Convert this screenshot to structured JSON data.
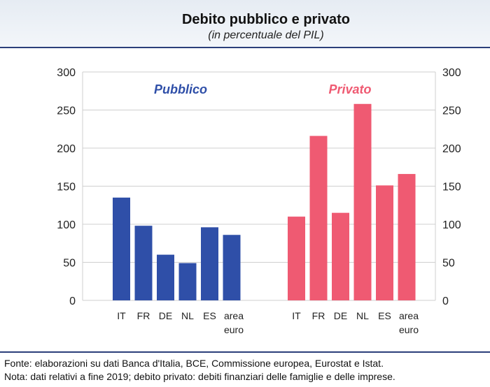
{
  "chart_data": {
    "type": "bar",
    "title": "Debito pubblico e privato",
    "subtitle": "(in percentuale del PIL)",
    "categories": [
      "IT",
      "FR",
      "DE",
      "NL",
      "ES",
      "area euro"
    ],
    "category_lines": [
      [
        "IT"
      ],
      [
        "FR"
      ],
      [
        "DE"
      ],
      [
        "NL"
      ],
      [
        "ES"
      ],
      [
        "area",
        "euro"
      ]
    ],
    "series": [
      {
        "name": "Pubblico",
        "color": "#2f4fa8",
        "values": [
          135,
          98,
          60,
          49,
          96,
          86
        ]
      },
      {
        "name": "Privato",
        "color": "#ef5a72",
        "values": [
          110,
          216,
          115,
          258,
          151,
          166
        ]
      }
    ],
    "ylim": [
      0,
      300
    ],
    "yticks": [
      0,
      50,
      100,
      150,
      200,
      250,
      300
    ],
    "grid": true,
    "xlabel": "",
    "ylabel": ""
  },
  "footer": {
    "source": "Fonte: elaborazioni su dati Banca d'Italia, BCE, Commissione europea, Eurostat e Istat.",
    "note": "Nota: dati relativi a fine 2019; debito privato: debiti finanziari delle famiglie e delle imprese."
  }
}
